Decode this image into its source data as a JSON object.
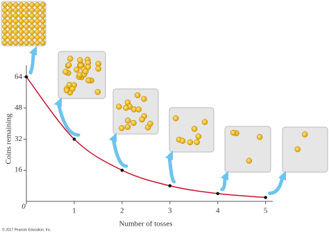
{
  "chart_data": {
    "type": "line",
    "x_label": "Number of tosses",
    "y_label": "Coins remaining",
    "x": [
      0,
      1,
      2,
      3,
      4,
      5
    ],
    "series": [
      {
        "name": "Coins remaining",
        "color": "#c8102e",
        "values": [
          64,
          32,
          16,
          8,
          4,
          2
        ]
      }
    ],
    "xlim": [
      0,
      5.15
    ],
    "ylim": [
      0,
      70
    ],
    "xticks": [
      0,
      1,
      2,
      3,
      4,
      5
    ],
    "yticks": [
      16,
      32,
      48,
      64
    ],
    "copyright": "© 2017 Pearson Education, Inc."
  }
}
